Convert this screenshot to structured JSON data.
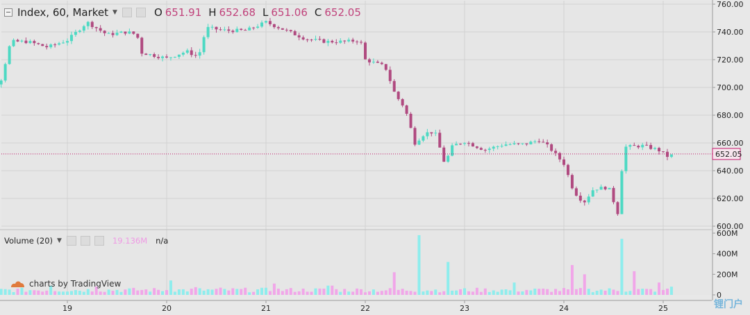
{
  "legend": {
    "symbol": "Index, 60, Market",
    "o_label": "O",
    "o_value": "651.91",
    "h_label": "H",
    "h_value": "652.68",
    "l_label": "L",
    "l_value": "651.06",
    "c_label": "C",
    "c_value": "652.05"
  },
  "volume_legend": {
    "label": "Volume (20)",
    "value": "19.136M",
    "na": "n/a"
  },
  "brand": {
    "text": "charts by TradingView"
  },
  "watermark": {
    "text": "锂门户"
  },
  "colors": {
    "up": "#4dd9c3",
    "down": "#b04a80",
    "vol_up": "#8eeded",
    "vol_down": "#f1a6e9",
    "last_price": "#c2186b"
  },
  "chart_data": [
    {
      "type": "candlestick",
      "y_axis_ticks": [
        "760.00",
        "740.00",
        "720.00",
        "700.00",
        "680.00",
        "660.00",
        "640.00",
        "620.00",
        "600.00"
      ],
      "ylim": [
        600,
        760
      ],
      "x_tick_labels": [
        "19",
        "20",
        "21",
        "22",
        "23",
        "24",
        "25"
      ],
      "last_price_label": "652.05",
      "last_price": 652.05,
      "close_path": [
        [
          18.0,
          703
        ],
        [
          18.15,
          697
        ],
        [
          18.33,
          705
        ],
        [
          18.43,
          733
        ],
        [
          18.6,
          733
        ],
        [
          18.8,
          729
        ],
        [
          19.0,
          734
        ],
        [
          19.2,
          747
        ],
        [
          19.4,
          738
        ],
        [
          19.6,
          740
        ],
        [
          19.7,
          738
        ],
        [
          19.75,
          725
        ],
        [
          20.0,
          721
        ],
        [
          20.2,
          726
        ],
        [
          20.32,
          722
        ],
        [
          20.4,
          743
        ],
        [
          20.6,
          741
        ],
        [
          20.8,
          741
        ],
        [
          21.0,
          747
        ],
        [
          21.2,
          741
        ],
        [
          21.4,
          735
        ],
        [
          21.6,
          733
        ],
        [
          21.8,
          733
        ],
        [
          21.95,
          734
        ],
        [
          22.0,
          720
        ],
        [
          22.2,
          715
        ],
        [
          22.3,
          695
        ],
        [
          22.4,
          685
        ],
        [
          22.5,
          660
        ],
        [
          22.6,
          667
        ],
        [
          22.7,
          668
        ],
        [
          22.8,
          645
        ],
        [
          22.88,
          658
        ],
        [
          23.0,
          661
        ],
        [
          23.2,
          655
        ],
        [
          23.4,
          659
        ],
        [
          23.6,
          659
        ],
        [
          23.75,
          662
        ],
        [
          23.85,
          657
        ],
        [
          24.0,
          645
        ],
        [
          24.1,
          625
        ],
        [
          24.2,
          617
        ],
        [
          24.3,
          627
        ],
        [
          24.45,
          628
        ],
        [
          24.55,
          608
        ],
        [
          24.6,
          657
        ],
        [
          24.8,
          658
        ],
        [
          24.95,
          655
        ],
        [
          25.05,
          650
        ],
        [
          25.12,
          652.05
        ]
      ],
      "volume": {
        "y_axis_ticks": [
          "600M",
          "400M",
          "200M",
          "0"
        ],
        "ylim": [
          0,
          600
        ],
        "spikes": [
          [
            18.25,
            120
          ],
          [
            18.85,
            90
          ],
          [
            19.3,
            80
          ],
          [
            20.03,
            140
          ],
          [
            20.3,
            75
          ],
          [
            20.55,
            70
          ],
          [
            21.1,
            110
          ],
          [
            21.65,
            90
          ],
          [
            22.3,
            220
          ],
          [
            22.55,
            580
          ],
          [
            22.83,
            320
          ],
          [
            23.5,
            120
          ],
          [
            24.1,
            290
          ],
          [
            24.2,
            200
          ],
          [
            24.6,
            545
          ],
          [
            24.7,
            230
          ],
          [
            24.95,
            120
          ],
          [
            25.1,
            80
          ]
        ]
      }
    }
  ]
}
